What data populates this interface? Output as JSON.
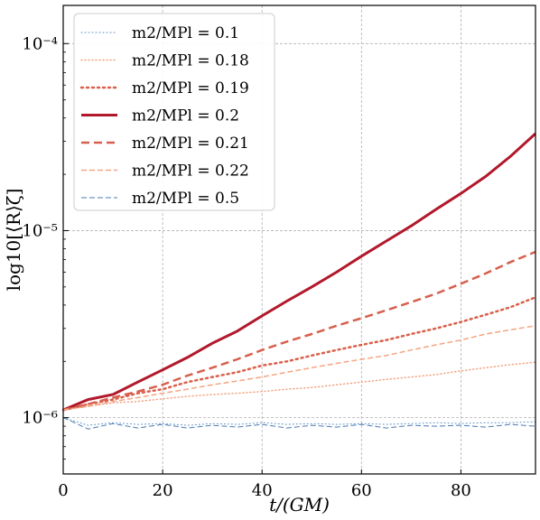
{
  "chart_data": {
    "type": "line",
    "xlabel": "t/(GM)",
    "ylabel": "log10[⟨R⟩ζ]",
    "xlim": [
      0,
      95
    ],
    "ylim": [
      5e-07,
      0.00016
    ],
    "yscale": "log",
    "grid": true,
    "legend_position": "top-left",
    "x_ticks": [
      0,
      20,
      40,
      60,
      80
    ],
    "x_tick_labels": [
      "0",
      "20",
      "40",
      "60",
      "80"
    ],
    "y_ticks": [
      1e-06,
      1e-05,
      0.0001
    ],
    "y_tick_labels": [
      "10⁻⁶",
      "10⁻⁵",
      "10⁻⁴"
    ],
    "x": [
      0,
      5,
      10,
      15,
      20,
      25,
      30,
      35,
      40,
      45,
      50,
      55,
      60,
      65,
      70,
      75,
      80,
      85,
      90,
      95
    ],
    "series": [
      {
        "name": "m2/MPl = 0.1",
        "color": "#5a8ec4",
        "style": "dotted",
        "width": 1,
        "values": [
          1e-06,
          9.1e-07,
          9.4e-07,
          9.2e-07,
          9.3e-07,
          9.1e-07,
          9.3e-07,
          9.2e-07,
          9.4e-07,
          9.2e-07,
          9.3e-07,
          9.2e-07,
          9.3e-07,
          9.2e-07,
          9.3e-07,
          9.4e-07,
          9.3e-07,
          9.4e-07,
          9.4e-07,
          9.5e-07
        ]
      },
      {
        "name": "m2/MPl = 0.18",
        "color": "#f2a280",
        "style": "dotted",
        "width": 1.5,
        "values": [
          1.1e-06,
          1.15e-06,
          1.2e-06,
          1.22e-06,
          1.26e-06,
          1.3e-06,
          1.33e-06,
          1.35e-06,
          1.38e-06,
          1.42e-06,
          1.45e-06,
          1.5e-06,
          1.55e-06,
          1.6e-06,
          1.65e-06,
          1.7e-06,
          1.78e-06,
          1.85e-06,
          1.92e-06,
          1.98e-06
        ]
      },
      {
        "name": "m2/MPl = 0.19",
        "color": "#d9604a",
        "style": "dotted",
        "width": 2.5,
        "values": [
          1.1e-06,
          1.18e-06,
          1.25e-06,
          1.35e-06,
          1.42e-06,
          1.55e-06,
          1.65e-06,
          1.75e-06,
          1.9e-06,
          2e-06,
          2.15e-06,
          2.3e-06,
          2.45e-06,
          2.6e-06,
          2.8e-06,
          3e-06,
          3.25e-06,
          3.55e-06,
          3.9e-06,
          4.4e-06
        ]
      },
      {
        "name": "m2/MPl = 0.2",
        "color": "#b2182b",
        "style": "solid",
        "width": 3,
        "values": [
          1.1e-06,
          1.25e-06,
          1.33e-06,
          1.55e-06,
          1.8e-06,
          2.1e-06,
          2.5e-06,
          2.9e-06,
          3.5e-06,
          4.2e-06,
          5e-06,
          6e-06,
          7.3e-06,
          8.8e-06,
          1.06e-05,
          1.3e-05,
          1.58e-05,
          1.95e-05,
          2.5e-05,
          3.3e-05
        ]
      },
      {
        "name": "m2/MPl = 0.21",
        "color": "#d6604d",
        "style": "dashed",
        "width": 2.5,
        "values": [
          1.1e-06,
          1.18e-06,
          1.28e-06,
          1.38e-06,
          1.5e-06,
          1.68e-06,
          1.85e-06,
          2.05e-06,
          2.3e-06,
          2.55e-06,
          2.8e-06,
          3.1e-06,
          3.4e-06,
          3.75e-06,
          4.15e-06,
          4.6e-06,
          5.2e-06,
          5.9e-06,
          6.8e-06,
          7.7e-06
        ]
      },
      {
        "name": "m2/MPl = 0.22",
        "color": "#f4a582",
        "style": "dashed",
        "width": 1.5,
        "values": [
          1.1e-06,
          1.15e-06,
          1.22e-06,
          1.28e-06,
          1.35e-06,
          1.42e-06,
          1.5e-06,
          1.57e-06,
          1.65e-06,
          1.75e-06,
          1.85e-06,
          1.95e-06,
          2.05e-06,
          2.15e-06,
          2.3e-06,
          2.45e-06,
          2.6e-06,
          2.8e-06,
          2.95e-06,
          3.1e-06
        ]
      },
      {
        "name": "m2/MPl = 0.5",
        "color": "#4a7ab5",
        "style": "dashed",
        "width": 1,
        "values": [
          1e-06,
          8.7e-07,
          9.3e-07,
          8.8e-07,
          9.2e-07,
          8.8e-07,
          9.1e-07,
          8.9e-07,
          9.2e-07,
          8.8e-07,
          9.1e-07,
          8.9e-07,
          9.2e-07,
          8.8e-07,
          9.1e-07,
          9e-07,
          9.1e-07,
          8.9e-07,
          9.2e-07,
          9e-07
        ]
      }
    ]
  }
}
